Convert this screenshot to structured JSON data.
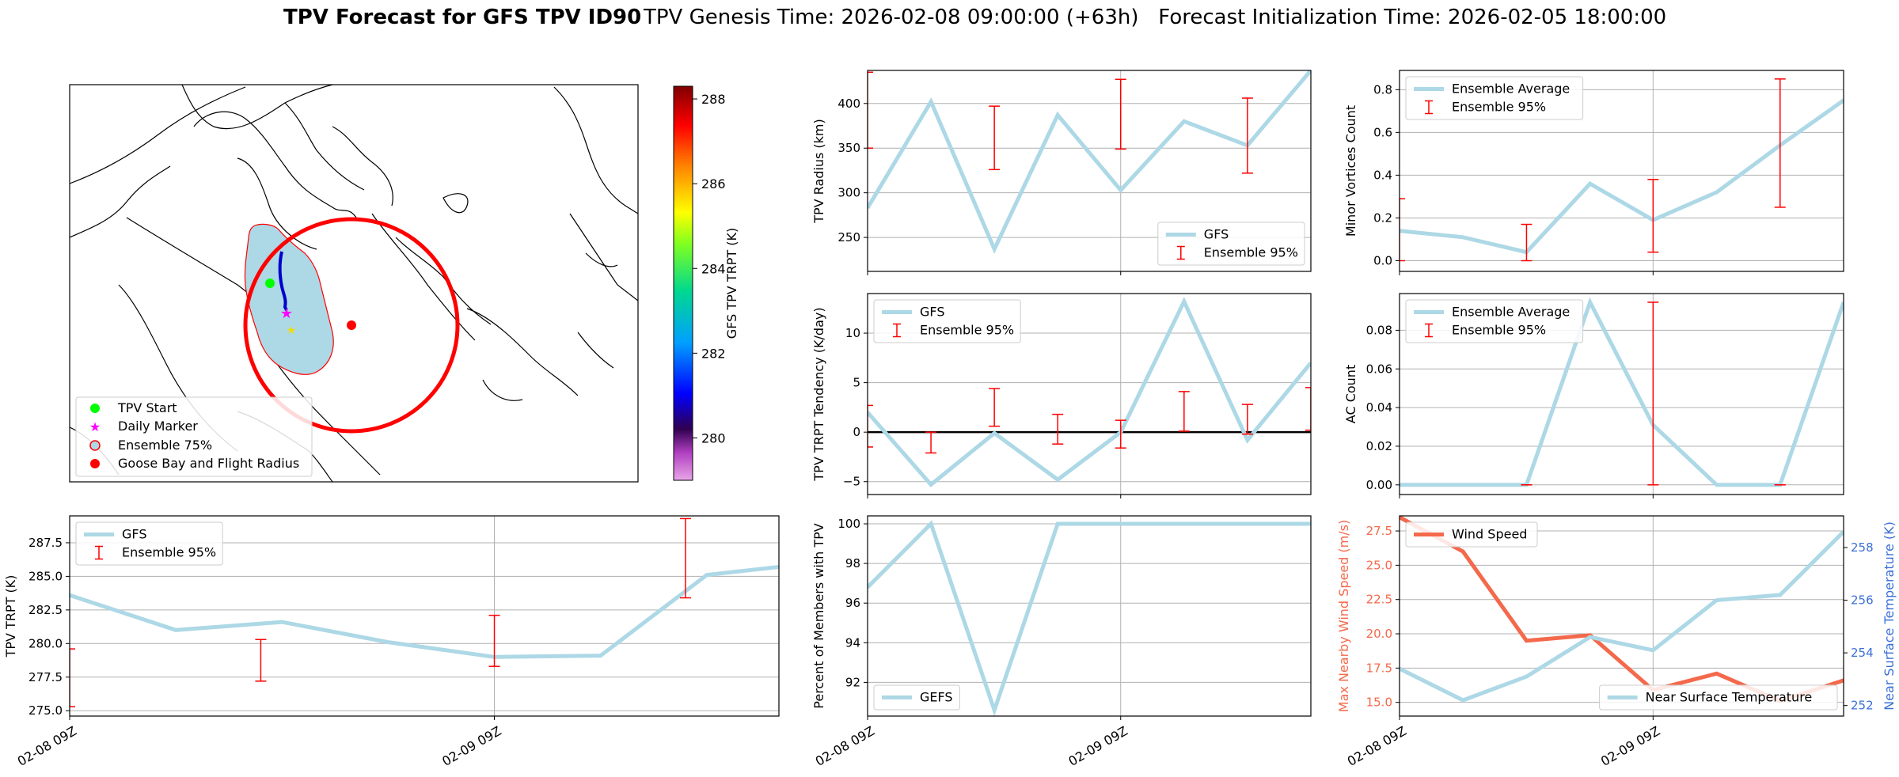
{
  "header": {
    "title_bold": "TPV Forecast for GFS TPV ID90",
    "title_rest": "TPV Genesis Time: 2026-02-08 09:00:00 (+63h)   Forecast Initialization Time: 2026-02-05 18:00:00"
  },
  "colors": {
    "line": "#add8e6",
    "errorbar": "#ff0000",
    "wind": "#f4694b",
    "temp_axis": "#3a6fd8",
    "circle": "#ff0000",
    "start": "#00ff00",
    "daily": "#ff00ff",
    "ensemble_fill": "#add8e6"
  },
  "map": {
    "legend": [
      "TPV Start",
      "Daily Marker",
      "Ensemble 75%",
      "Goose Bay and Flight Radius"
    ],
    "colorbar": {
      "label": "GFS TPV TRPT (K)",
      "ticks": [
        "280",
        "282",
        "284",
        "286",
        "288"
      ],
      "range": [
        279,
        288.3
      ]
    }
  },
  "chart_data": [
    {
      "id": "trpt",
      "type": "line",
      "ylabel": "TPV TRPT (K)",
      "xticks": [
        "02-08 09Z",
        "02-09 09Z"
      ],
      "xlim": [
        0,
        1.67
      ],
      "ylim": [
        274.6,
        289.5
      ],
      "yticks": [
        275.0,
        277.5,
        280.0,
        282.5,
        285.0,
        287.5
      ],
      "ytick_labels": [
        "275.0",
        "277.5",
        "280.0",
        "282.5",
        "285.0",
        "287.5"
      ],
      "legend": [
        "GFS",
        "Ensemble 95%"
      ],
      "x": [
        0,
        0.25,
        0.5,
        0.75,
        1.0,
        1.25,
        1.5,
        1.67
      ],
      "y": [
        283.6,
        281.0,
        281.6,
        280.1,
        279.0,
        279.1,
        285.1,
        285.7
      ],
      "errorbars": [
        {
          "x": 0,
          "low": 275.3,
          "high": 279.6
        },
        {
          "x": 0.45,
          "low": 277.2,
          "high": 280.3
        },
        {
          "x": 1.0,
          "low": 278.3,
          "high": 282.1
        },
        {
          "x": 1.45,
          "low": 283.4,
          "high": 289.3
        }
      ]
    },
    {
      "id": "radius",
      "type": "line",
      "ylabel": "TPV Radius (km)",
      "xlim": [
        0,
        1.0
      ],
      "ylim": [
        212,
        437
      ],
      "yticks": [
        250,
        300,
        350,
        400
      ],
      "ytick_labels": [
        "250",
        "300",
        "350",
        "400"
      ],
      "legend": [
        "GFS",
        "Ensemble 95%"
      ],
      "x": [
        0,
        0.143,
        0.286,
        0.429,
        0.571,
        0.714,
        0.857,
        1.0
      ],
      "y": [
        283,
        402,
        237,
        387,
        303,
        380,
        353,
        437
      ],
      "errorbars": [
        {
          "x": 0,
          "low": 350,
          "high": 435
        },
        {
          "x": 0.286,
          "low": 326,
          "high": 397
        },
        {
          "x": 0.571,
          "low": 349,
          "high": 427
        },
        {
          "x": 0.857,
          "low": 322,
          "high": 406
        }
      ]
    },
    {
      "id": "tendency",
      "type": "line",
      "ylabel": "TPV TRPT Tendency (K/day)",
      "xlim": [
        0,
        1.0
      ],
      "ylim": [
        -6.3,
        14.0
      ],
      "yticks": [
        -5,
        0,
        5,
        10
      ],
      "ytick_labels": [
        "−5",
        "0",
        "5",
        "10"
      ],
      "legend": [
        "GFS",
        "Ensemble 95%"
      ],
      "x": [
        0,
        0.143,
        0.286,
        0.429,
        0.571,
        0.714,
        0.857,
        1.0
      ],
      "y": [
        2.0,
        -5.3,
        -0.1,
        -4.8,
        0.0,
        13.2,
        -0.8,
        7.0
      ],
      "errorbars": [
        {
          "x": 0,
          "low": -1.5,
          "high": 2.7
        },
        {
          "x": 0.143,
          "low": -2.1,
          "high": 0.0
        },
        {
          "x": 0.286,
          "low": 0.6,
          "high": 4.4
        },
        {
          "x": 0.429,
          "low": -1.2,
          "high": 1.8
        },
        {
          "x": 0.571,
          "low": -1.6,
          "high": 1.2
        },
        {
          "x": 0.714,
          "low": 0.1,
          "high": 4.1
        },
        {
          "x": 0.857,
          "low": -0.2,
          "high": 2.8
        },
        {
          "x": 1.0,
          "low": 0.2,
          "high": 4.5
        }
      ]
    },
    {
      "id": "percent",
      "type": "line",
      "ylabel": "Percent of Members with TPV",
      "xticks": [
        "02-08 09Z",
        "02-09 09Z"
      ],
      "xlim": [
        0,
        1.0
      ],
      "ylim": [
        90.3,
        100.4
      ],
      "yticks": [
        92,
        94,
        96,
        98,
        100
      ],
      "ytick_labels": [
        "92",
        "94",
        "96",
        "98",
        "100"
      ],
      "legend": [
        "GEFS"
      ],
      "x": [
        0,
        0.143,
        0.286,
        0.429,
        0.571,
        0.714,
        0.857,
        1.0
      ],
      "y": [
        96.8,
        100,
        90.6,
        100,
        100,
        100,
        100,
        100
      ]
    },
    {
      "id": "minor",
      "type": "line",
      "ylabel": "Minor Vortices Count",
      "xlim": [
        0,
        1.0
      ],
      "ylim": [
        -0.05,
        0.89
      ],
      "yticks": [
        0.0,
        0.2,
        0.4,
        0.6,
        0.8
      ],
      "ytick_labels": [
        "0.0",
        "0.2",
        "0.4",
        "0.6",
        "0.8"
      ],
      "legend": [
        "Ensemble Average",
        "Ensemble 95%"
      ],
      "x": [
        0,
        0.143,
        0.286,
        0.429,
        0.571,
        0.714,
        0.857,
        1.0
      ],
      "y": [
        0.14,
        0.11,
        0.04,
        0.36,
        0.19,
        0.32,
        0.54,
        0.75
      ],
      "errorbars": [
        {
          "x": 0,
          "low": 0.0,
          "high": 0.29
        },
        {
          "x": 0.286,
          "low": 0.0,
          "high": 0.17
        },
        {
          "x": 0.571,
          "low": 0.04,
          "high": 0.38
        },
        {
          "x": 0.857,
          "low": 0.25,
          "high": 0.85
        }
      ]
    },
    {
      "id": "ac",
      "type": "line",
      "ylabel": "AC Count",
      "xlim": [
        0,
        1.0
      ],
      "ylim": [
        -0.005,
        0.099
      ],
      "yticks": [
        0.0,
        0.02,
        0.04,
        0.06,
        0.08
      ],
      "ytick_labels": [
        "0.00",
        "0.02",
        "0.04",
        "0.06",
        "0.08"
      ],
      "legend": [
        "Ensemble Average",
        "Ensemble 95%"
      ],
      "x": [
        0,
        0.143,
        0.286,
        0.429,
        0.571,
        0.714,
        0.857,
        1.0
      ],
      "y": [
        0,
        0,
        0,
        0.0945,
        0.031,
        0,
        0,
        0.0945
      ],
      "errorbars": [
        {
          "x": 0.286,
          "low": 0.0,
          "high": 0.0
        },
        {
          "x": 0.571,
          "low": 0.0,
          "high": 0.0945
        },
        {
          "x": 0.857,
          "low": 0.0,
          "high": 0.0
        }
      ]
    },
    {
      "id": "wind",
      "type": "line",
      "ylabel": "Max Nearby Wind Speed (m/s)",
      "ylabel_right": "Near Surface Temperature (K)",
      "xticks": [
        "02-08 09Z",
        "02-09 09Z"
      ],
      "xlim": [
        0,
        1.0
      ],
      "ylim": [
        14.0,
        28.6
      ],
      "yticks": [
        15.0,
        17.5,
        20.0,
        22.5,
        25.0,
        27.5
      ],
      "ytick_labels": [
        "15.0",
        "17.5",
        "20.0",
        "22.5",
        "25.0",
        "27.5"
      ],
      "ylim_right": [
        251.6,
        259.2
      ],
      "yticks_right": [
        252,
        254,
        256,
        258
      ],
      "ytick_labels_right": [
        "252",
        "254",
        "256",
        "258"
      ],
      "legend": [
        "Wind Speed"
      ],
      "legend_right": [
        "Near Surface Temperature"
      ],
      "x": [
        0,
        0.143,
        0.286,
        0.429,
        0.571,
        0.714,
        0.857,
        1.0
      ],
      "y": [
        28.5,
        26.0,
        19.5,
        19.9,
        15.9,
        17.1,
        15.1,
        16.6
      ],
      "y_right": [
        253.4,
        252.2,
        253.1,
        254.6,
        254.1,
        256.0,
        256.2,
        258.6
      ]
    }
  ]
}
